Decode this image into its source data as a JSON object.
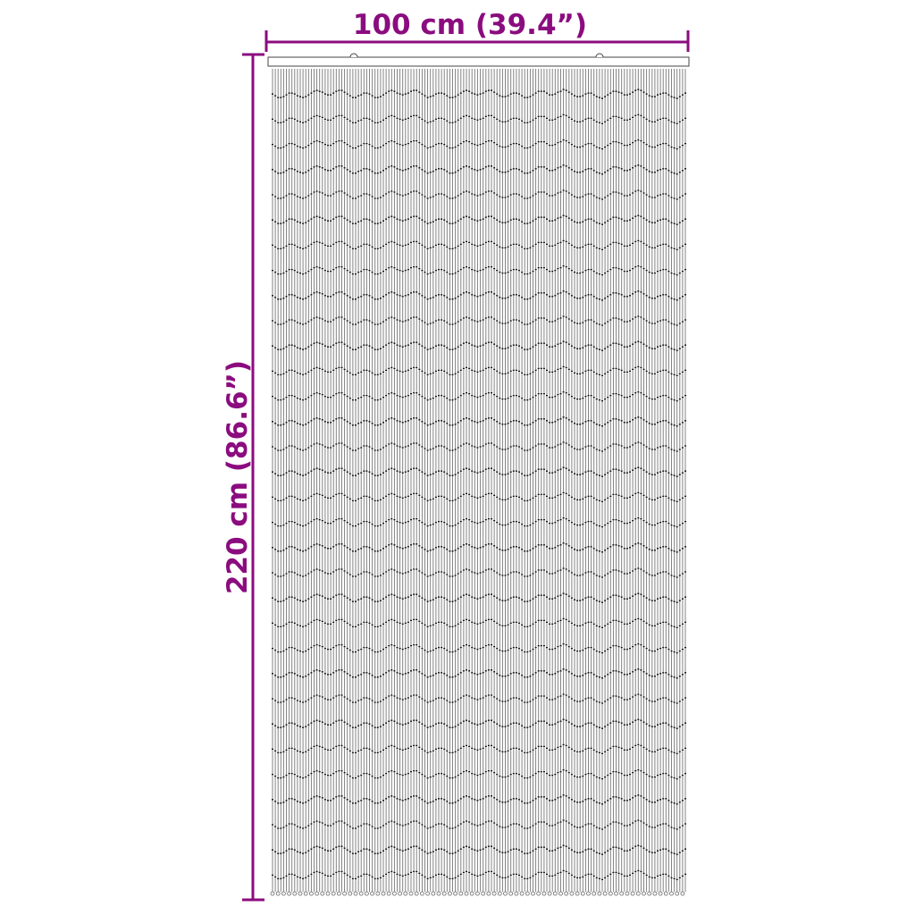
{
  "dimensions": {
    "width_label": "100 cm (39.4”)",
    "height_label": "220 cm (86.6”)"
  },
  "colors": {
    "dimension": "#8b0c7f",
    "strand": "#555555",
    "rod": "#444444"
  },
  "product": "bead-curtain-icon"
}
